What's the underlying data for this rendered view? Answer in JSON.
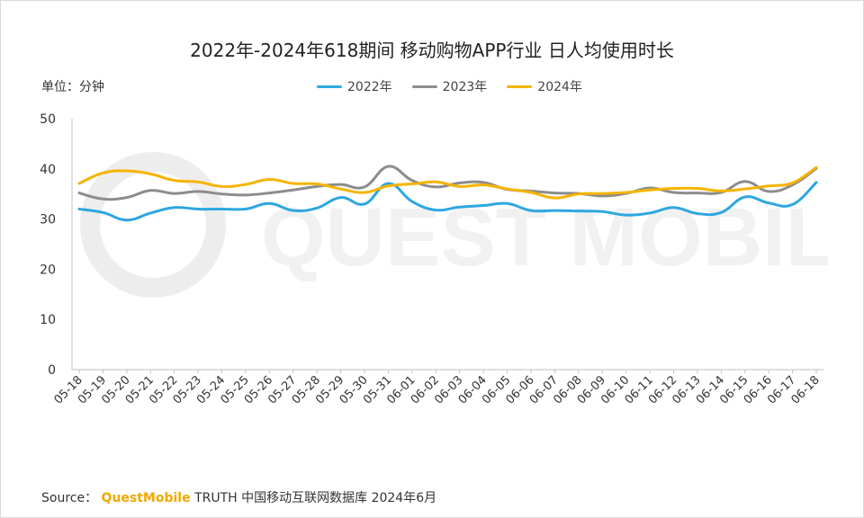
{
  "title": "2022年-2024年618期间 移动购物APP行业 日人均使用时长",
  "unit_label": "单位：分钟",
  "source": {
    "prefix": "Source：",
    "brand": "QuestMobile",
    "suffix": "TRUTH 中国移动互联网数据库 2024年6月"
  },
  "watermark_text": "QUEST MOBILE",
  "chart_data": {
    "type": "line",
    "title": "2022年-2024年618期间 移动购物APP行业 日人均使用时长",
    "xlabel": "",
    "ylabel": "单位：分钟",
    "ylim": [
      0,
      50
    ],
    "yticks": [
      0,
      10,
      20,
      30,
      40,
      50
    ],
    "grid": false,
    "legend_position": "top",
    "categories": [
      "05-18",
      "05-19",
      "05-20",
      "05-21",
      "05-22",
      "05-23",
      "05-24",
      "05-25",
      "05-26",
      "05-27",
      "05-28",
      "05-29",
      "05-30",
      "05-31",
      "06-01",
      "06-02",
      "06-03",
      "06-04",
      "06-05",
      "06-06",
      "06-07",
      "06-08",
      "06-09",
      "06-10",
      "06-11",
      "06-12",
      "06-13",
      "06-14",
      "06-15",
      "06-16",
      "06-17",
      "06-18"
    ],
    "series": [
      {
        "name": "2022年",
        "color": "#2ea7e0",
        "values": [
          32.0,
          31.3,
          29.8,
          31.2,
          32.3,
          32.0,
          32.0,
          32.0,
          33.1,
          31.7,
          32.2,
          34.3,
          33.0,
          37.1,
          33.5,
          31.8,
          32.4,
          32.7,
          33.1,
          31.7,
          31.7,
          31.6,
          31.5,
          30.8,
          31.2,
          32.3,
          31.1,
          31.3,
          34.4,
          33.2,
          32.9,
          37.3
        ]
      },
      {
        "name": "2023年",
        "color": "#8c8c8c",
        "values": [
          35.2,
          34.0,
          34.3,
          35.7,
          35.1,
          35.5,
          35.0,
          34.8,
          35.2,
          35.8,
          36.5,
          36.9,
          36.4,
          40.5,
          37.7,
          36.4,
          37.2,
          37.3,
          35.9,
          35.6,
          35.2,
          35.1,
          34.6,
          35.1,
          36.2,
          35.3,
          35.2,
          35.3,
          37.5,
          35.5,
          36.8,
          40.1
        ]
      },
      {
        "name": "2024年",
        "color": "#f5b400",
        "values": [
          37.1,
          39.2,
          39.6,
          39.0,
          37.7,
          37.4,
          36.5,
          36.9,
          37.9,
          37.1,
          37.0,
          36.0,
          35.3,
          36.6,
          37.0,
          37.4,
          36.5,
          36.8,
          36.0,
          35.3,
          34.2,
          35.0,
          35.1,
          35.3,
          35.8,
          36.1,
          36.1,
          35.6,
          36.0,
          36.6,
          37.2,
          40.3
        ]
      }
    ]
  }
}
